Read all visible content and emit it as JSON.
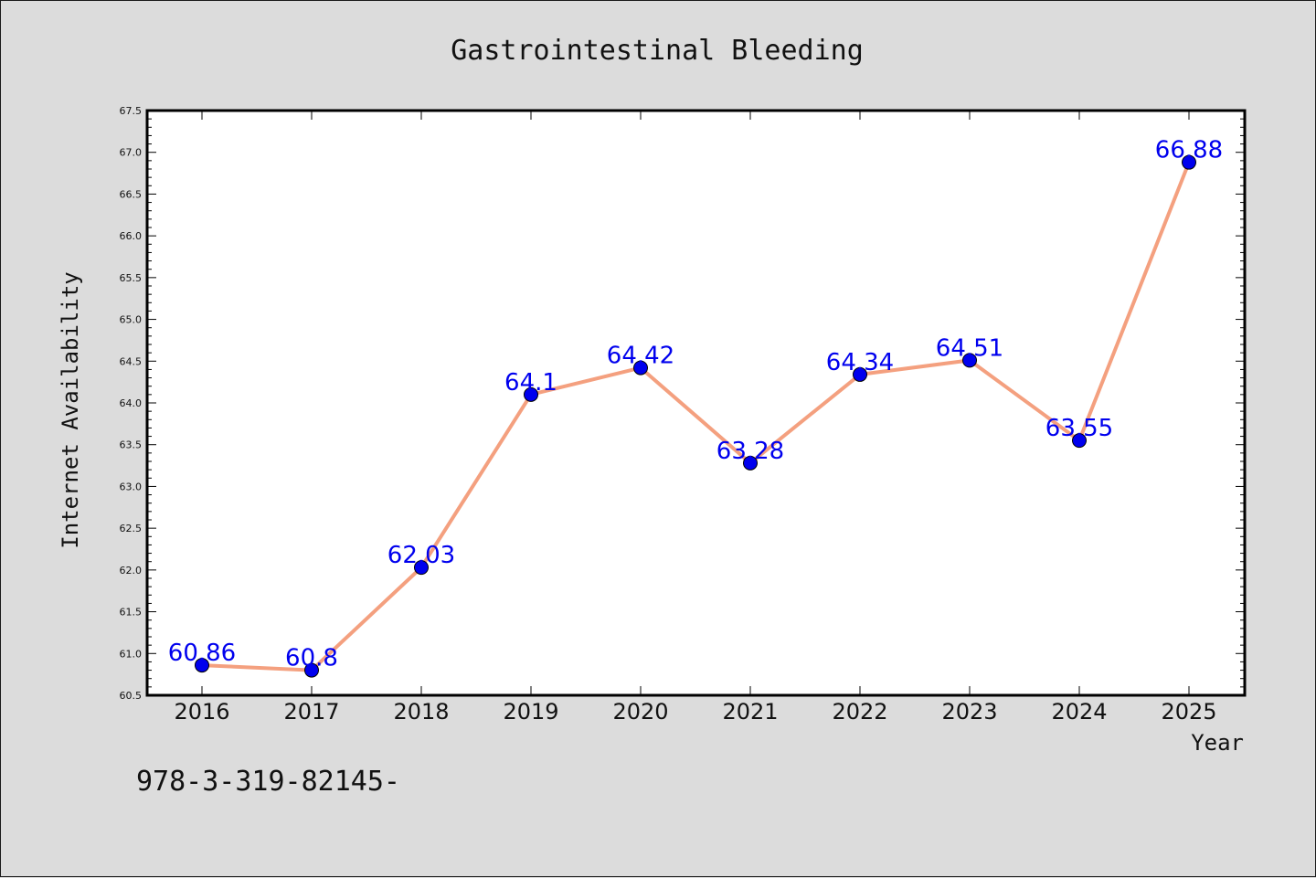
{
  "chart_data": {
    "type": "line",
    "title": "Gastrointestinal Bleeding",
    "xlabel": "Year",
    "ylabel": "Internet Availability",
    "categories": [
      "2016",
      "2017",
      "2018",
      "2019",
      "2020",
      "2021",
      "2022",
      "2023",
      "2024",
      "2025"
    ],
    "values": [
      60.86,
      60.8,
      62.03,
      64.1,
      64.42,
      63.28,
      64.34,
      64.51,
      63.55,
      66.88
    ],
    "data_labels": [
      "60.86",
      "60.8",
      "62.03",
      "64.1",
      "64.42",
      "63.28",
      "64.34",
      "64.51",
      "63.55",
      "66.88"
    ],
    "ylim": [
      60.5,
      67.5
    ],
    "yticks": [
      "60.5",
      "61.0",
      "61.5",
      "62.0",
      "62.5",
      "63.0",
      "63.5",
      "64.0",
      "64.5",
      "65.0",
      "65.5",
      "66.0",
      "66.5",
      "67.0",
      "67.5"
    ],
    "grid": false,
    "legend": "none",
    "colors": {
      "line": "#f4a07f",
      "marker": "#0000ee",
      "label": "#0000ee",
      "plot_background": "#ffffff",
      "figure_background": "#dcdcdc"
    }
  },
  "footnote": "978-3-319-82145-"
}
